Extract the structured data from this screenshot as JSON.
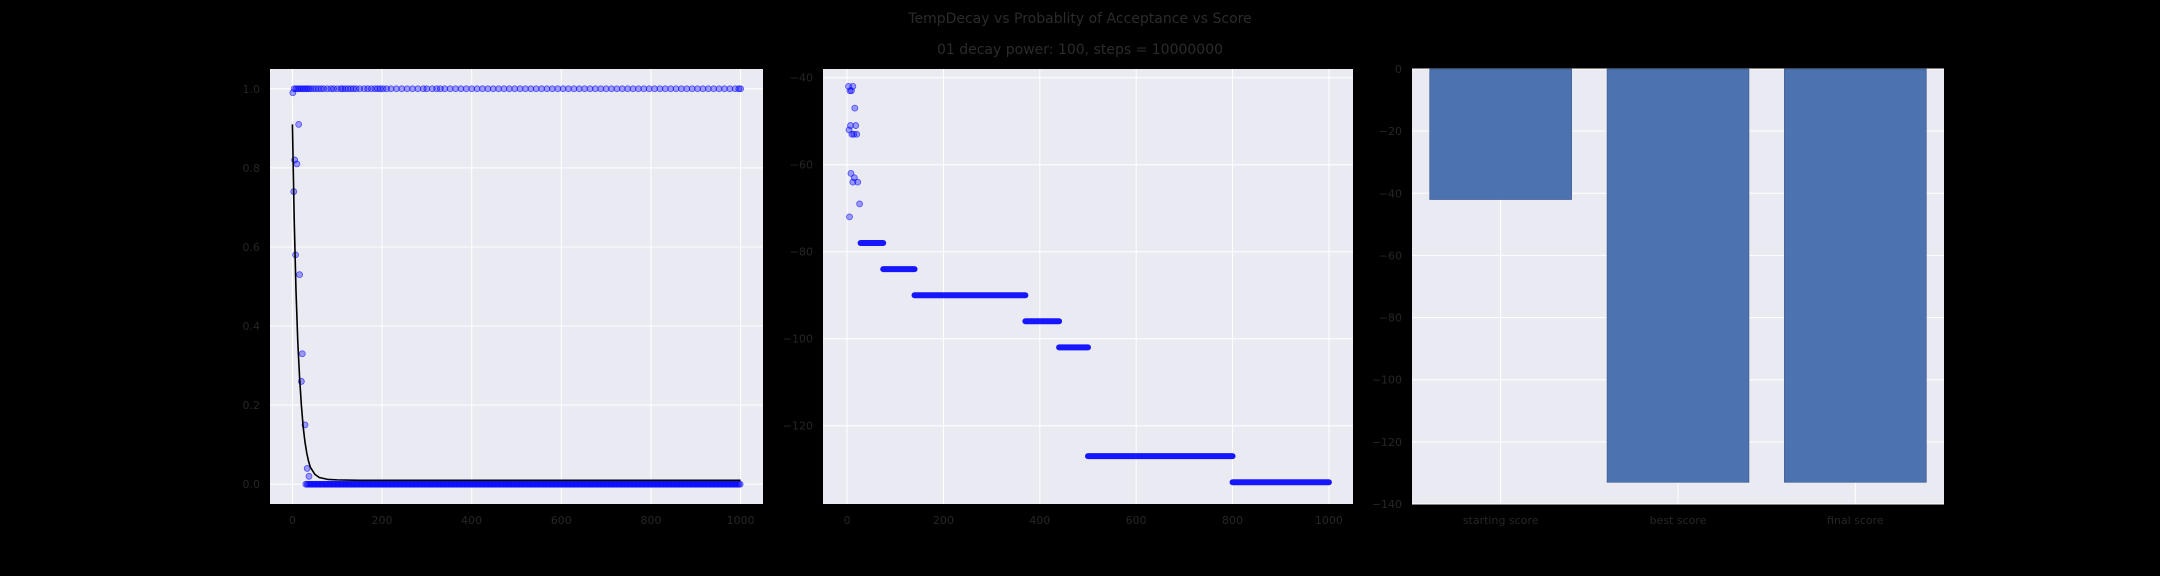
{
  "figure": {
    "title": "TempDecay vs Probablity of Acceptance vs Score",
    "subtitle": "01 decay power: 100, steps = 10000000"
  },
  "colors": {
    "figure_bg": "#000000",
    "axes_bg": "#eaeaf2",
    "grid": "#ffffff",
    "scatter": "#0000ff",
    "curve": "#000000",
    "bar": "#4c72b0",
    "tick_label": "#262626"
  },
  "chart_data": [
    {
      "type": "scatter",
      "xlim": [
        -50,
        1050
      ],
      "ylim": [
        -0.05,
        1.05
      ],
      "x_ticks": [
        0,
        200,
        400,
        600,
        800,
        1000
      ],
      "y_ticks": [
        0.0,
        0.2,
        0.4,
        0.6,
        0.8,
        1.0
      ],
      "x_tick_labels": [
        "0",
        "200",
        "400",
        "600",
        "800",
        "1000"
      ],
      "y_tick_labels": [
        "0.0",
        "0.2",
        "0.4",
        "0.6",
        "0.8",
        "1.0"
      ],
      "grid": true,
      "series": [
        {
          "kind": "points",
          "points": [
            [
              1,
              0.99
            ],
            [
              3,
              0.74
            ],
            [
              5,
              0.82
            ],
            [
              7,
              0.58
            ],
            [
              10,
              0.81
            ],
            [
              14,
              0.91
            ],
            [
              16,
              0.53
            ],
            [
              20,
              0.26
            ],
            [
              22,
              0.33
            ],
            [
              28,
              0.15
            ],
            [
              33,
              0.04
            ],
            [
              37,
              0.02
            ]
          ],
          "top_band_x": [
            4,
            8,
            12,
            16,
            20,
            24,
            28,
            32,
            36,
            40,
            46,
            52,
            58,
            64,
            70,
            78,
            86,
            92,
            100,
            108,
            112,
            118,
            124,
            130,
            136,
            142,
            150,
            160,
            168,
            176,
            184,
            190,
            196,
            202,
            210,
            220,
            232,
            244,
            256,
            268,
            280,
            292,
            300,
            312,
            322,
            330,
            340,
            352,
            364,
            376,
            388,
            400,
            412,
            424,
            436,
            448,
            460,
            472,
            484,
            496,
            508,
            520,
            532,
            544,
            556,
            568,
            580,
            592,
            604,
            616,
            628,
            640,
            652,
            664,
            676,
            688,
            700,
            712,
            724,
            736,
            748,
            760,
            772,
            784,
            796,
            808,
            820,
            832,
            844,
            856,
            868,
            880,
            892,
            904,
            916,
            928,
            940,
            952,
            964,
            976,
            988,
            996,
            1000
          ],
          "top_band_y": 1.0,
          "bottom_band_x_range": [
            30,
            1000
          ],
          "bottom_band_y": 0.0
        },
        {
          "kind": "line",
          "x": [
            0,
            4,
            8,
            12,
            16,
            20,
            24,
            28,
            32,
            36,
            40,
            50,
            60,
            80,
            100,
            150,
            200,
            400,
            600,
            800,
            1000
          ],
          "y": [
            0.91,
            0.67,
            0.49,
            0.36,
            0.27,
            0.2,
            0.145,
            0.107,
            0.079,
            0.058,
            0.043,
            0.025,
            0.017,
            0.012,
            0.011,
            0.01,
            0.01,
            0.01,
            0.01,
            0.01,
            0.01
          ]
        }
      ]
    },
    {
      "type": "scatter",
      "xlim": [
        -50,
        1050
      ],
      "ylim": [
        -138,
        -38
      ],
      "x_ticks": [
        0,
        200,
        400,
        600,
        800,
        1000
      ],
      "y_ticks": [
        -120,
        -100,
        -80,
        -60,
        -40
      ],
      "x_tick_labels": [
        "0",
        "200",
        "400",
        "600",
        "800",
        "1000"
      ],
      "y_tick_labels": [
        "−120",
        "−100",
        "−80",
        "−60",
        "−40"
      ],
      "grid": true,
      "points": [
        [
          3,
          -42
        ],
        [
          6,
          -43
        ],
        [
          9,
          -43
        ],
        [
          12,
          -42
        ],
        [
          4,
          -52
        ],
        [
          7,
          -51
        ],
        [
          10,
          -53
        ],
        [
          14,
          -53
        ],
        [
          16,
          -47
        ],
        [
          18,
          -51
        ],
        [
          20,
          -53
        ],
        [
          8,
          -62
        ],
        [
          12,
          -64
        ],
        [
          15,
          -63
        ],
        [
          22,
          -64
        ],
        [
          26,
          -69
        ],
        [
          5,
          -72
        ]
      ],
      "segments": [
        {
          "x": [
            28,
            75
          ],
          "y": -78
        },
        {
          "x": [
            75,
            140
          ],
          "y": -84
        },
        {
          "x": [
            140,
            370
          ],
          "y": -90
        },
        {
          "x": [
            370,
            440
          ],
          "y": -96
        },
        {
          "x": [
            440,
            500
          ],
          "y": -102
        },
        {
          "x": [
            500,
            800
          ],
          "y": -127
        },
        {
          "x": [
            800,
            1000
          ],
          "y": -133
        }
      ]
    },
    {
      "type": "bar",
      "categories": [
        "starting score",
        "best score",
        "final score"
      ],
      "values": [
        -42,
        -133,
        -133
      ],
      "ylim": [
        -140,
        0
      ],
      "y_ticks": [
        -140,
        -120,
        -100,
        -80,
        -60,
        -40,
        -20,
        0
      ],
      "y_tick_labels": [
        "−140",
        "−120",
        "−100",
        "−80",
        "−60",
        "−40",
        "−20",
        "0"
      ],
      "grid": true
    }
  ]
}
